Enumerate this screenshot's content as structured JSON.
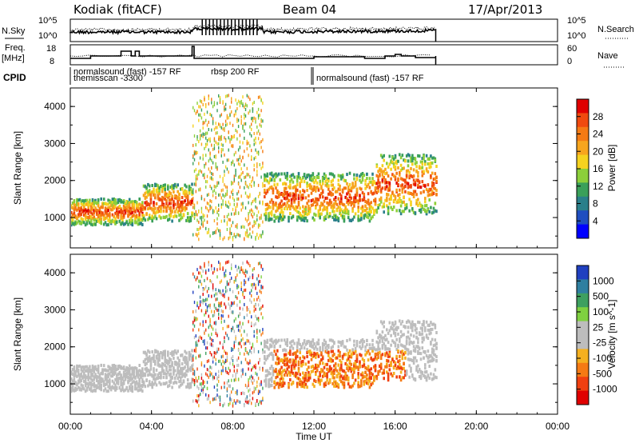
{
  "header": {
    "station": "Kodiak (fitACF)",
    "beam": "Beam 04",
    "date": "17/Apr/2013"
  },
  "strip_noise": {
    "left_label": "N.Sky",
    "right_label": "N.Search",
    "left_ticks": [
      "10^5",
      "10^0"
    ],
    "right_ticks": [
      "10^5",
      "10^0"
    ]
  },
  "strip_freq": {
    "left_label_1": "Freq.",
    "left_label_2": "[MHz]",
    "right_label": "Nave",
    "left_ticks": [
      "18",
      "8"
    ],
    "right_ticks": [
      "60",
      "0"
    ]
  },
  "cpid": {
    "label": "CPID",
    "early_labels": [
      "normalsound (fast) -157 RF",
      "themisscan -3300",
      "rbsp 200 RF"
    ],
    "late_label": "normalsound (fast) -157 RF"
  },
  "chart_data": [
    {
      "type": "heatmap",
      "title": "",
      "xlabel": "",
      "ylabel": "Slant Range [km]",
      "x_range_hours": [
        0,
        24
      ],
      "ylim": [
        180,
        4500
      ],
      "y_ticks": [
        "1000",
        "2000",
        "3000",
        "4000"
      ],
      "colorbar_label": "Power [dB]",
      "colorbar_ticks": [
        "4",
        "8",
        "12",
        "16",
        "20",
        "24",
        "28"
      ],
      "colorbar_colors": [
        "#0000ff",
        "#1f4ec0",
        "#2a7f8a",
        "#3aa05a",
        "#8ccf3a",
        "#f5d21f",
        "#f7a51e",
        "#f57a14",
        "#f04a0f",
        "#e00000"
      ],
      "data_extent_hours": [
        0,
        18
      ]
    },
    {
      "type": "heatmap",
      "title": "",
      "xlabel": "Time UT",
      "ylabel": "Slant Range [km]",
      "x_range_hours": [
        0,
        24
      ],
      "ylim": [
        180,
        4500
      ],
      "y_ticks": [
        "1000",
        "2000",
        "3000",
        "4000"
      ],
      "colorbar_label": "Velocity [m s^-1]",
      "colorbar_ticks": [
        "1000",
        "500",
        "100",
        "25",
        "-25",
        "-100",
        "-500",
        "-1000"
      ],
      "colorbar_colors": [
        "#2040c0",
        "#2f7fa0",
        "#3ea060",
        "#7fd040",
        "#bdbdbd",
        "#bdbdbd",
        "#f5b020",
        "#f57a14",
        "#f04010",
        "#e00000"
      ],
      "data_extent_hours": [
        0,
        18
      ]
    }
  ],
  "time_axis": {
    "label": "Time UT",
    "ticks": [
      "00:00",
      "04:00",
      "08:00",
      "12:00",
      "16:00",
      "20:00",
      "00:00"
    ]
  }
}
